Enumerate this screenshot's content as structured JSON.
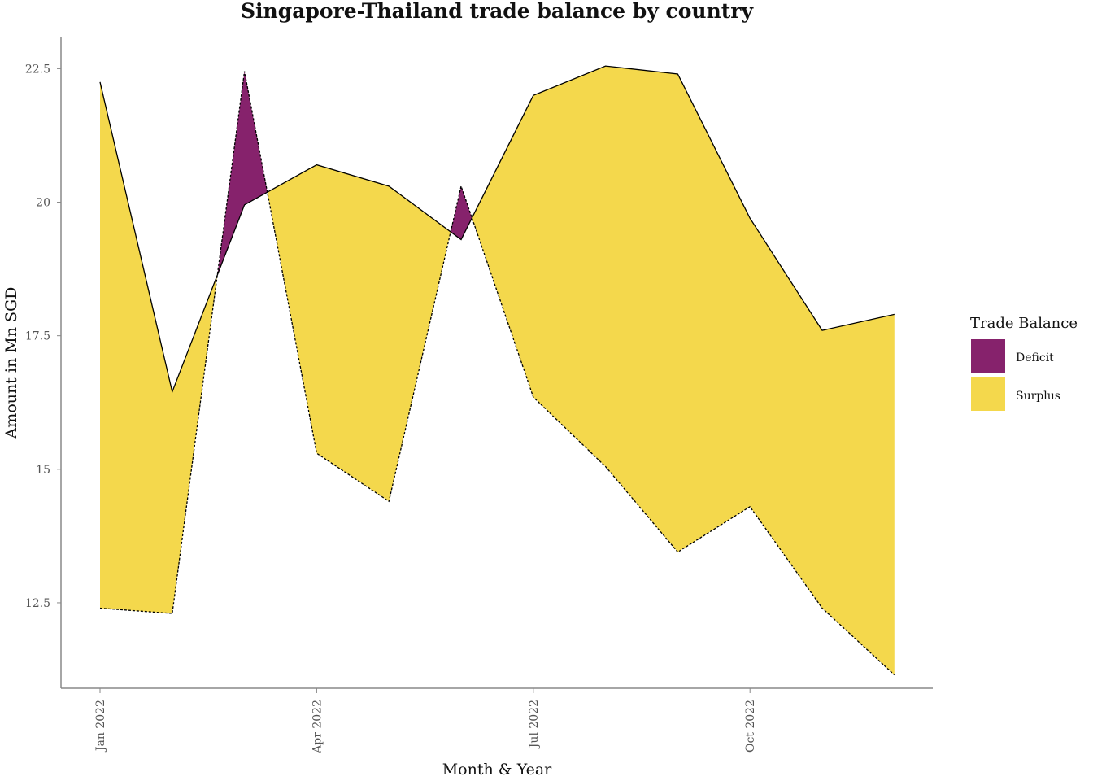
{
  "chart_data": {
    "type": "area",
    "title": "Singapore-Thailand trade balance by country",
    "xlabel": "Month & Year",
    "ylabel": "Amount in Mn SGD",
    "x": [
      "2022-01",
      "2022-02",
      "2022-03",
      "2022-04",
      "2022-05",
      "2022-06",
      "2022-07",
      "2022-08",
      "2022-09",
      "2022-10",
      "2022-11",
      "2022-12"
    ],
    "x_ticks": [
      "Jan 2022",
      "Apr 2022",
      "Jul 2022",
      "Oct 2022"
    ],
    "y_ticks": [
      "12.5",
      "15",
      "17.5",
      "20",
      "22.5"
    ],
    "ylim": [
      10.9,
      23.1
    ],
    "series": [
      {
        "name": "",
        "line": "solid",
        "values": [
          22.25,
          16.45,
          19.95,
          20.7,
          20.3,
          19.3,
          22.0,
          22.55,
          22.4,
          19.7,
          17.6,
          17.9
        ]
      },
      {
        "name": "",
        "line": "dashed",
        "values": [
          12.4,
          12.3,
          22.45,
          15.3,
          14.4,
          20.3,
          16.35,
          15.05,
          13.45,
          14.3,
          12.4,
          11.15
        ]
      }
    ],
    "legend": {
      "title": "Trade Balance",
      "placement": "right",
      "items": [
        {
          "label": "Deficit",
          "color": "#86226c"
        },
        {
          "label": "Surplus",
          "color": "#f4d84c"
        }
      ]
    },
    "grid": false
  }
}
